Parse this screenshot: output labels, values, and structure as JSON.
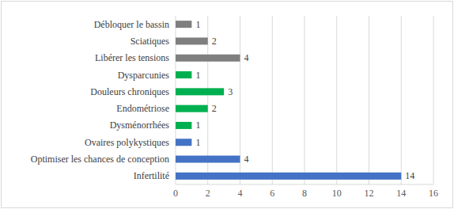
{
  "chart_data": {
    "type": "bar",
    "orientation": "horizontal",
    "categories": [
      "Débloquer le bassin",
      "Sciatiques",
      "Libérer les tensions",
      "Dysparcunies",
      "Douleurs chroniques",
      "Endométriose",
      "Dysménorrhées",
      "Ovaires polykystiques",
      "Optimiser les chances de conception",
      "Infertilité"
    ],
    "values": [
      1,
      2,
      4,
      1,
      3,
      2,
      1,
      1,
      4,
      14
    ],
    "colors": [
      "#7f7f7f",
      "#7f7f7f",
      "#7f7f7f",
      "#00b050",
      "#00b050",
      "#00b050",
      "#00b050",
      "#4472c4",
      "#4472c4",
      "#4472c4"
    ],
    "xlim": [
      0,
      16
    ],
    "xticks": [
      0,
      2,
      4,
      6,
      8,
      10,
      12,
      14,
      16
    ],
    "grid": true,
    "data_labels": true
  }
}
